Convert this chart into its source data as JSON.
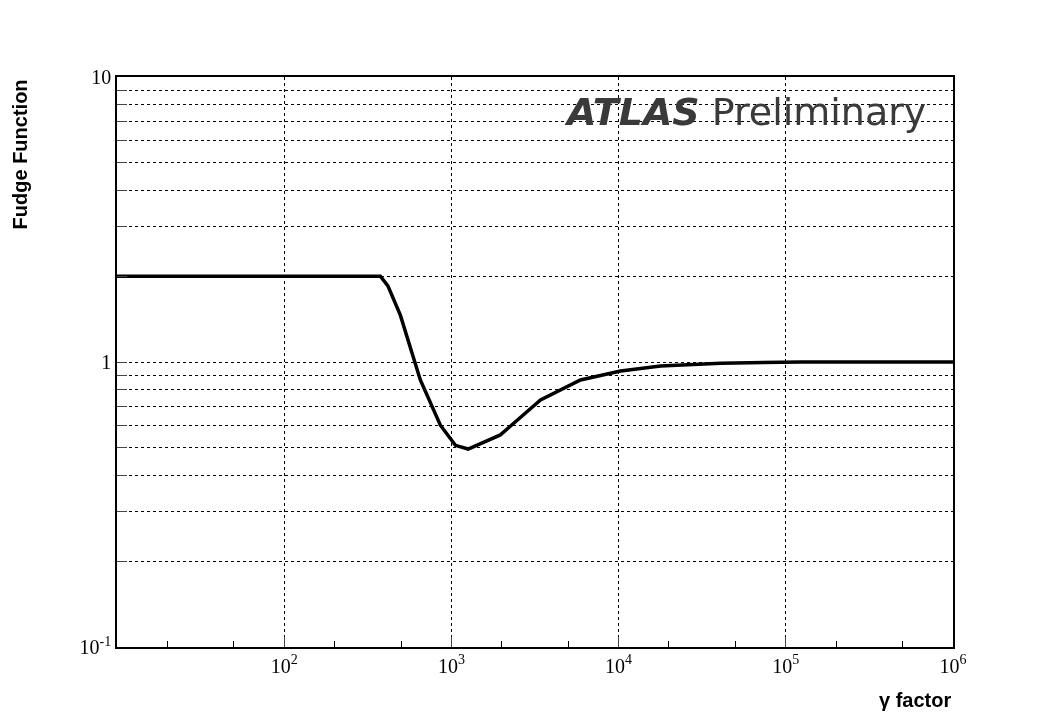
{
  "chart_data": {
    "type": "line",
    "xlabel": "γ factor",
    "ylabel": "Fudge Function",
    "annotations": [
      "ATLAS Preliminary"
    ],
    "x": [
      10,
      376,
      417,
      495,
      652,
      859,
      1057,
      1259,
      1963,
      3412,
      5916,
      10280,
      17820,
      40800,
      123000,
      1000000
    ],
    "series": [
      {
        "color": "#000000",
        "values": [
          2.0,
          2.0,
          1.85,
          1.46,
          0.865,
          0.6,
          0.51,
          0.495,
          0.555,
          0.736,
          0.865,
          0.93,
          0.968,
          0.99,
          1.0,
          1.0
        ]
      }
    ],
    "log": "xy",
    "xlim": [
      10,
      1000000
    ],
    "ylim": [
      0.1,
      10
    ],
    "xticks": [
      {
        "value": 100,
        "label": "10$^{2}$"
      },
      {
        "value": 1000,
        "label": "10$^{3}$"
      },
      {
        "value": 10000,
        "label": "10$^{4}$"
      },
      {
        "value": 100000,
        "label": "10$^{5}$"
      },
      {
        "value": 1000000,
        "label": "10$^{6}$"
      }
    ],
    "yticks": [
      {
        "value": 0.1,
        "label": "10$^{-1}$"
      },
      {
        "value": 0.2,
        "label": null
      },
      {
        "value": 0.3,
        "label": null
      },
      {
        "value": 0.4,
        "label": null
      },
      {
        "value": 0.5,
        "label": null
      },
      {
        "value": 0.6,
        "label": null
      },
      {
        "value": 0.7,
        "label": null
      },
      {
        "value": 0.8,
        "label": null
      },
      {
        "value": 0.9,
        "label": null
      },
      1,
      {
        "value": 2,
        "label": null
      },
      {
        "value": 3,
        "label": null
      },
      {
        "value": 4,
        "label": null
      },
      {
        "value": 5,
        "label": null
      },
      {
        "value": 6,
        "label": null
      },
      {
        "value": 7,
        "label": null
      },
      {
        "value": 8,
        "label": null
      },
      {
        "value": 9,
        "label": null
      },
      10
    ],
    "grid": true,
    "marker": "none",
    "line_style": "solid"
  }
}
